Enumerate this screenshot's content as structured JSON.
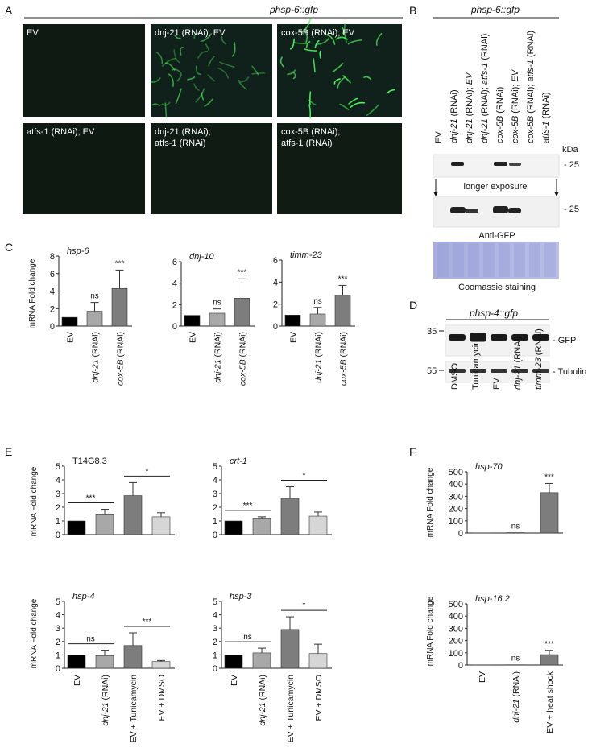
{
  "panels": {
    "A": {
      "letter": "A",
      "header": "phsp-6::gfp",
      "tiles": [
        {
          "line1": "EV",
          "line2": ""
        },
        {
          "line1": "dnj-21 (RNAi); EV",
          "line2": ""
        },
        {
          "line1": "cox-5B (RNAi); EV",
          "line2": ""
        },
        {
          "line1": "atfs-1 (RNAi); EV",
          "line2": ""
        },
        {
          "line1": "dnj-21 (RNAi);",
          "line2": "atfs-1 (RNAi)"
        },
        {
          "line1": "cox-5B (RNAi);",
          "line2": "atfs-1 (RNAi)"
        }
      ]
    },
    "B": {
      "letter": "B",
      "header": "phsp-6::gfp",
      "lanes": [
        "EV",
        "dnj-21 (RNAi)",
        "dnj-21 (RNAi); EV",
        "dnj-21 (RNAi); atfs-1 (RNAi)",
        "cox-5B (RNAi)",
        "cox-5B (RNAi); EV",
        "cox-5B (RNAi); atfs-1 (RNAi)",
        "atfs-1 (RNAi)"
      ],
      "kda_label": "kDa",
      "marker_1": "- 25",
      "marker_2": "- 25",
      "longer_exposure": "longer exposure",
      "antibody": "Anti-GFP",
      "stain": "Coomassie staining"
    },
    "C": {
      "letter": "C",
      "ylabel": "mRNA Fold change",
      "categories": [
        "EV",
        "dnj-21 (RNAi)",
        "cox-5B (RNAi)"
      ]
    },
    "D": {
      "letter": "D",
      "header": "phsp-4::gfp",
      "marker_35": "35",
      "marker_55": "55",
      "band_gfp": "- GFP",
      "band_tubulin": "- Tubulin",
      "lanes": [
        "DMSO",
        "Tunicamycin",
        "EV",
        "dnj-21 (RNAi)",
        "timm-23 (RNAi)"
      ]
    },
    "E": {
      "letter": "E",
      "ylabel": "mRNA Fold change",
      "categories": [
        "EV",
        "dnj-21 (RNAi)",
        "EV + Tunicamycin",
        "EV + DMSO"
      ]
    },
    "F": {
      "letter": "F",
      "ylabel": "mRNA Fold change",
      "categories": [
        "EV",
        "dnj-21 (RNAi)",
        "EV + heat shock"
      ]
    }
  },
  "chart_data": [
    {
      "panel": "C",
      "type": "bar",
      "title": "hsp-6",
      "categories": [
        "EV",
        "dnj-21 (RNAi)",
        "cox-5B (RNAi)"
      ],
      "values": [
        1.0,
        1.7,
        4.3
      ],
      "errors": [
        0,
        1.0,
        2.1
      ],
      "sig": [
        "",
        "ns",
        "***"
      ],
      "ylim": [
        0,
        8
      ],
      "yticks": [
        0,
        2,
        4,
        6,
        8
      ],
      "colors": [
        "#000000",
        "#a8a8a8",
        "#7d7d7d"
      ]
    },
    {
      "panel": "C",
      "type": "bar",
      "title": "dnj-10",
      "categories": [
        "EV",
        "dnj-21 (RNAi)",
        "cox-5B (RNAi)"
      ],
      "values": [
        1.0,
        1.2,
        2.6
      ],
      "errors": [
        0,
        0.4,
        1.8
      ],
      "sig": [
        "",
        "ns",
        "***"
      ],
      "ylim": [
        0,
        6
      ],
      "yticks": [
        0,
        2,
        4,
        6
      ],
      "colors": [
        "#000000",
        "#a8a8a8",
        "#7d7d7d"
      ]
    },
    {
      "panel": "C",
      "type": "bar",
      "title": "timm-23",
      "categories": [
        "EV",
        "dnj-21 (RNAi)",
        "cox-5B (RNAi)"
      ],
      "values": [
        1.0,
        1.1,
        2.8
      ],
      "errors": [
        0,
        0.6,
        0.9
      ],
      "sig": [
        "",
        "ns",
        "***"
      ],
      "ylim": [
        0,
        6
      ],
      "yticks": [
        0,
        2,
        4,
        6
      ],
      "colors": [
        "#000000",
        "#a8a8a8",
        "#7d7d7d"
      ]
    },
    {
      "panel": "E",
      "type": "bar",
      "title": "T14G8.3",
      "categories": [
        "EV",
        "dnj-21 (RNAi)",
        "EV + Tunicamycin",
        "EV + DMSO"
      ],
      "values": [
        1.0,
        1.45,
        2.85,
        1.3
      ],
      "errors": [
        0,
        0.4,
        0.95,
        0.3
      ],
      "ylim": [
        0,
        5
      ],
      "yticks": [
        0,
        1,
        2,
        3,
        4,
        5
      ],
      "brackets": [
        {
          "from": 0,
          "to": 1,
          "label": "***"
        },
        {
          "from": 2,
          "to": 3,
          "label": "*"
        }
      ],
      "colors": [
        "#000000",
        "#a8a8a8",
        "#7d7d7d",
        "#d6d6d6"
      ]
    },
    {
      "panel": "E",
      "type": "bar",
      "title": "crt-1",
      "categories": [
        "EV",
        "dnj-21 (RNAi)",
        "EV + Tunicamycin",
        "EV + DMSO"
      ],
      "values": [
        1.0,
        1.15,
        2.65,
        1.35
      ],
      "errors": [
        0,
        0.15,
        0.85,
        0.3
      ],
      "ylim": [
        0,
        5
      ],
      "yticks": [
        0,
        1,
        2,
        3,
        4,
        5
      ],
      "brackets": [
        {
          "from": 0,
          "to": 1,
          "label": "***"
        },
        {
          "from": 2,
          "to": 3,
          "label": "*"
        }
      ],
      "colors": [
        "#000000",
        "#a8a8a8",
        "#7d7d7d",
        "#d6d6d6"
      ]
    },
    {
      "panel": "E",
      "type": "bar",
      "title": "hsp-4",
      "categories": [
        "EV",
        "dnj-21 (RNAi)",
        "EV + Tunicamycin",
        "EV + DMSO"
      ],
      "values": [
        1.0,
        0.95,
        1.7,
        0.5
      ],
      "errors": [
        0,
        0.4,
        0.95,
        0.08
      ],
      "ylim": [
        0,
        5
      ],
      "yticks": [
        0,
        1,
        2,
        3,
        4,
        5
      ],
      "brackets": [
        {
          "from": 0,
          "to": 1,
          "label": "ns"
        },
        {
          "from": 2,
          "to": 3,
          "label": "***"
        }
      ],
      "colors": [
        "#000000",
        "#a8a8a8",
        "#7d7d7d",
        "#d6d6d6"
      ]
    },
    {
      "panel": "E",
      "type": "bar",
      "title": "hsp-3",
      "categories": [
        "EV",
        "dnj-21 (RNAi)",
        "EV + Tunicamycin",
        "EV + DMSO"
      ],
      "values": [
        1.0,
        1.15,
        2.9,
        1.1
      ],
      "errors": [
        0,
        0.35,
        0.95,
        0.7
      ],
      "ylim": [
        0,
        5
      ],
      "yticks": [
        0,
        1,
        2,
        3,
        4,
        5
      ],
      "brackets": [
        {
          "from": 0,
          "to": 1,
          "label": "ns"
        },
        {
          "from": 2,
          "to": 3,
          "label": "*"
        }
      ],
      "colors": [
        "#000000",
        "#a8a8a8",
        "#7d7d7d",
        "#d6d6d6"
      ]
    },
    {
      "panel": "F",
      "type": "bar",
      "title": "hsp-70",
      "categories": [
        "EV",
        "dnj-21 (RNAi)",
        "EV + heat shock"
      ],
      "values": [
        1,
        3,
        330
      ],
      "errors": [
        0,
        0,
        75
      ],
      "sig": [
        "",
        "ns",
        "***"
      ],
      "ylim": [
        0,
        500
      ],
      "yticks": [
        0,
        100,
        200,
        300,
        400,
        500
      ],
      "colors": [
        "#000000",
        "#a8a8a8",
        "#7d7d7d"
      ]
    },
    {
      "panel": "F",
      "type": "bar",
      "title": "hsp-16.2",
      "categories": [
        "EV",
        "dnj-21 (RNAi)",
        "EV + heat shock"
      ],
      "values": [
        1,
        2,
        85
      ],
      "errors": [
        0,
        0,
        35
      ],
      "sig": [
        "",
        "ns",
        "***"
      ],
      "ylim": [
        0,
        500
      ],
      "yticks": [
        0,
        100,
        200,
        300,
        400,
        500
      ],
      "colors": [
        "#000000",
        "#a8a8a8",
        "#7d7d7d"
      ]
    }
  ]
}
